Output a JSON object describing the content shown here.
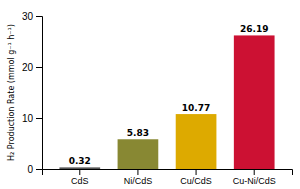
{
  "chart_data": {
    "type": "bar",
    "categories": [
      "CdS",
      "Ni/CdS",
      "Cu/CdS",
      "Cu-Ni/CdS"
    ],
    "values": [
      0.32,
      5.83,
      10.77,
      26.19
    ],
    "colors": [
      "#555555",
      "#888833",
      "#ddaa00",
      "#cc1133"
    ],
    "ylabel": "H₂ Production Rate (mmol g⁻¹ h⁻¹)",
    "ylim": [
      0,
      30
    ],
    "yticks": [
      0,
      10,
      20,
      30
    ],
    "grid": false,
    "data_labels": true
  }
}
